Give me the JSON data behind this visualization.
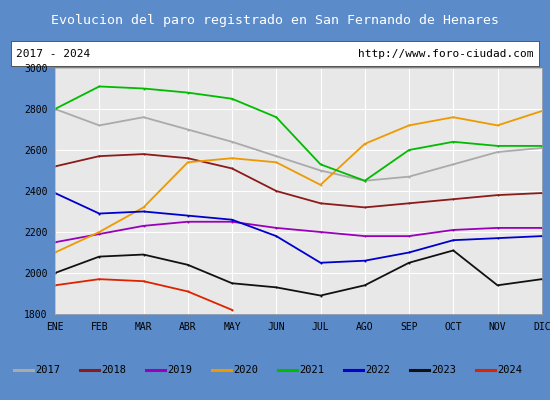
{
  "title": "Evolucion del paro registrado en San Fernando de Henares",
  "subtitle_left": "2017 - 2024",
  "subtitle_right": "http://www.foro-ciudad.com",
  "title_bg_color": "#5b8bc9",
  "title_text_color": "#ffffff",
  "plot_bg_color": "#e8e8e8",
  "outer_bg_color": "#5b8bc9",
  "xlabel_months": [
    "ENE",
    "FEB",
    "MAR",
    "ABR",
    "MAY",
    "JUN",
    "JUL",
    "AGO",
    "SEP",
    "OCT",
    "NOV",
    "DIC"
  ],
  "ylim": [
    1800,
    3000
  ],
  "yticks": [
    1800,
    2000,
    2200,
    2400,
    2600,
    2800,
    3000
  ],
  "series": {
    "2017": {
      "color": "#aaaaaa",
      "values": [
        2800,
        2720,
        2760,
        2700,
        2640,
        2570,
        2500,
        2450,
        2470,
        2530,
        2590,
        2610
      ]
    },
    "2018": {
      "color": "#8b1a1a",
      "values": [
        2520,
        2570,
        2580,
        2560,
        2510,
        2400,
        2340,
        2320,
        2340,
        2360,
        2380,
        2390
      ]
    },
    "2019": {
      "color": "#9900bb",
      "values": [
        2150,
        2190,
        2230,
        2250,
        2250,
        2220,
        2200,
        2180,
        2180,
        2210,
        2220,
        2220
      ]
    },
    "2020": {
      "color": "#ee9900",
      "values": [
        2100,
        2200,
        2320,
        2540,
        2560,
        2540,
        2430,
        2630,
        2720,
        2760,
        2720,
        2790
      ]
    },
    "2021": {
      "color": "#00bb00",
      "values": [
        2800,
        2910,
        2900,
        2880,
        2850,
        2760,
        2530,
        2450,
        2600,
        2640,
        2620,
        2620
      ]
    },
    "2022": {
      "color": "#0000cc",
      "values": [
        2390,
        2290,
        2300,
        2280,
        2260,
        2180,
        2050,
        2060,
        2100,
        2160,
        2170,
        2180
      ]
    },
    "2023": {
      "color": "#111111",
      "values": [
        2000,
        2080,
        2090,
        2040,
        1950,
        1930,
        1890,
        1940,
        2050,
        2110,
        1940,
        1970
      ]
    },
    "2024": {
      "color": "#dd2200",
      "values": [
        1940,
        1970,
        1960,
        1910,
        1820,
        null,
        null,
        null,
        null,
        null,
        null,
        null
      ]
    }
  }
}
